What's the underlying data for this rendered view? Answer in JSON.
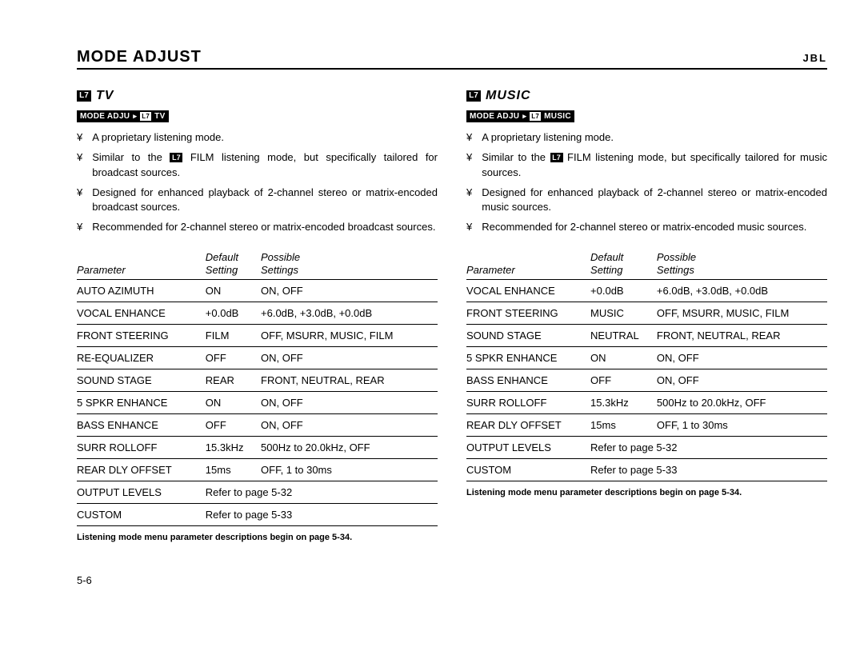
{
  "header": {
    "title": "MODE ADJUST",
    "brand": "JBL"
  },
  "icon7": "L7",
  "left": {
    "modeLabel": "TV",
    "menuPath": {
      "a": "MODE ADJU",
      "b": "TV"
    },
    "bulletMark": "¥",
    "bullets": [
      "A proprietary listening mode.",
      "Similar to the %%L7%% FILM  listening mode, but specifically tailored for broadcast sources.",
      "Designed for enhanced playback of 2-channel stereo or matrix-encoded  broadcast sources.",
      "Recommended for 2-channel stereo or matrix-encoded broadcast sources."
    ],
    "tableHead": {
      "c1": "Parameter",
      "c2a": "Default",
      "c2b": "Setting",
      "c3a": "Possible",
      "c3b": "Settings"
    },
    "rows": [
      [
        "AUTO AZIMUTH",
        "ON",
        "ON, OFF"
      ],
      [
        "VOCAL ENHANCE",
        "+0.0dB",
        "+6.0dB, +3.0dB, +0.0dB"
      ],
      [
        "FRONT STEERING",
        "FILM",
        "OFF, MSURR, MUSIC, FILM"
      ],
      [
        "RE-EQUALIZER",
        "OFF",
        "ON, OFF"
      ],
      [
        "SOUND STAGE",
        "REAR",
        "FRONT, NEUTRAL, REAR"
      ],
      [
        "5 SPKR ENHANCE",
        "ON",
        "ON, OFF"
      ],
      [
        "BASS ENHANCE",
        "OFF",
        "ON, OFF"
      ],
      [
        "SURR ROLLOFF",
        "15.3kHz",
        "500Hz to 20.0kHz, OFF"
      ],
      [
        "REAR DLY OFFSET",
        "15ms",
        "OFF, 1 to 30ms"
      ]
    ],
    "spanRows": [
      [
        "OUTPUT LEVELS",
        "Refer to page 5-32"
      ],
      [
        "CUSTOM",
        "Refer to page 5-33"
      ]
    ],
    "footnote": "Listening mode menu parameter descriptions begin on page 5-34."
  },
  "right": {
    "modeLabel": "MUSIC",
    "menuPath": {
      "a": "MODE ADJU",
      "b": "MUSIC"
    },
    "bulletMark": "¥",
    "bullets": [
      "A proprietary listening mode.",
      "Similar to the %%L7%% FILM listening mode, but specifically tailored for music sources.",
      "Designed for enhanced playback of 2-channel stereo or matrix-encoded music sources.",
      "Recommended for 2-channel stereo or matrix-encoded music sources."
    ],
    "tableHead": {
      "c1": "Parameter",
      "c2a": "Default",
      "c2b": "Setting",
      "c3a": "Possible",
      "c3b": "Settings"
    },
    "rows": [
      [
        "VOCAL ENHANCE",
        "+0.0dB",
        "+6.0dB, +3.0dB, +0.0dB"
      ],
      [
        "FRONT STEERING",
        "MUSIC",
        "OFF, MSURR, MUSIC, FILM"
      ],
      [
        "SOUND STAGE",
        "NEUTRAL",
        "FRONT, NEUTRAL, REAR"
      ],
      [
        "5 SPKR ENHANCE",
        "ON",
        "ON, OFF"
      ],
      [
        "BASS ENHANCE",
        "OFF",
        "ON, OFF"
      ],
      [
        "SURR ROLLOFF",
        "15.3kHz",
        "500Hz to 20.0kHz, OFF"
      ],
      [
        "REAR DLY OFFSET",
        "15ms",
        "OFF, 1 to 30ms"
      ]
    ],
    "spanRows": [
      [
        "OUTPUT LEVELS",
        "Refer to page 5-32"
      ],
      [
        "CUSTOM",
        "Refer to page 5-33"
      ]
    ],
    "footnote": "Listening mode menu parameter descriptions begin on page 5-34."
  },
  "pageNum": "5-6"
}
